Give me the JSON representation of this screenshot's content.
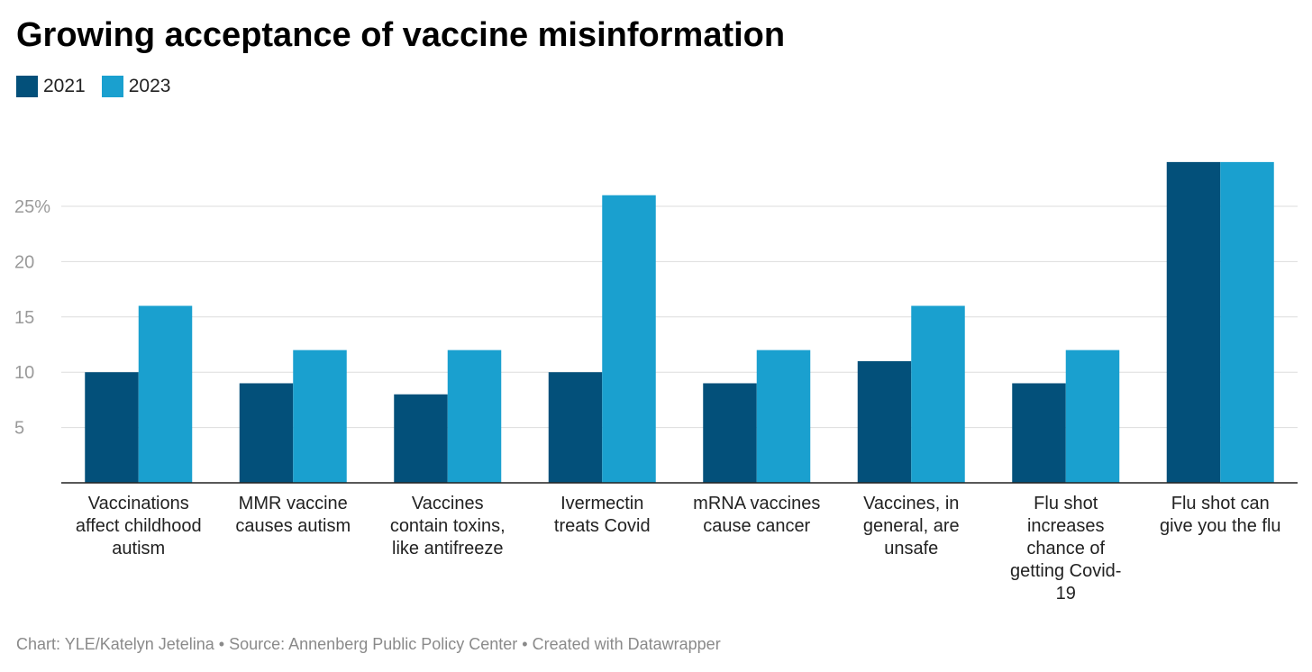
{
  "title": "Growing acceptance of vaccine misinformation",
  "footer": "Chart: YLE/Katelyn Jetelina • Source: Annenberg Public Policy Center • Created with Datawrapper",
  "colors": {
    "s2021": "#03507a",
    "s2023": "#1aa0cf",
    "grid": "#dddddd",
    "axis": "#222222",
    "tick": "#9a9a9a",
    "label": "#222222"
  },
  "chart_data": {
    "type": "bar",
    "title": "Growing acceptance of vaccine misinformation",
    "categories": [
      [
        "Vaccinations",
        "affect childhood",
        "autism"
      ],
      [
        "MMR vaccine",
        "causes autism"
      ],
      [
        "Vaccines",
        "contain toxins,",
        "like antifreeze"
      ],
      [
        "Ivermectin",
        "treats Covid"
      ],
      [
        "mRNA vaccines",
        "cause cancer"
      ],
      [
        "Vaccines, in",
        "general, are",
        "unsafe"
      ],
      [
        "Flu shot",
        "increases",
        "chance of",
        "getting Covid-",
        "19"
      ],
      [
        "Flu shot can",
        "give you the flu"
      ]
    ],
    "series": [
      {
        "name": "2021",
        "values": [
          10,
          9,
          8,
          10,
          9,
          11,
          9,
          29
        ]
      },
      {
        "name": "2023",
        "values": [
          16,
          12,
          12,
          26,
          12,
          16,
          12,
          29
        ]
      }
    ],
    "yticks": [
      5,
      10,
      15,
      20,
      25
    ],
    "ytick_labels": [
      "5",
      "10",
      "15",
      "20",
      "25%"
    ],
    "ylim": [
      0,
      29
    ],
    "grid": true,
    "legend": "top-left",
    "xlabel": "",
    "ylabel": ""
  }
}
